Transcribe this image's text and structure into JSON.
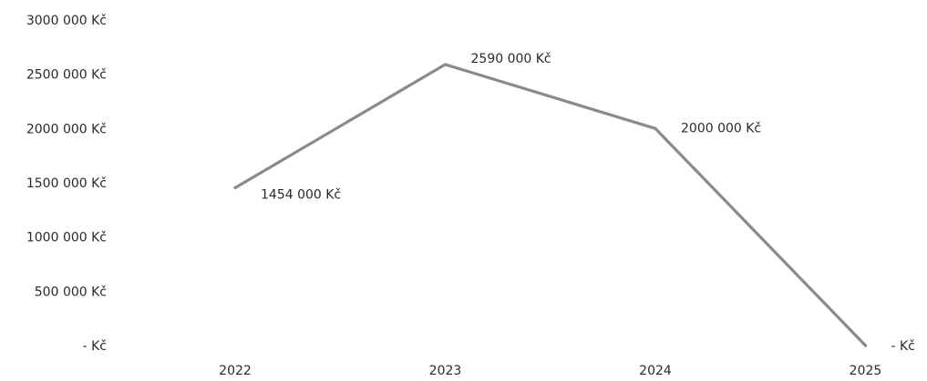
{
  "chart_data": {
    "type": "line",
    "categories": [
      "2022",
      "2023",
      "2024",
      "2025"
    ],
    "series": [
      {
        "values": [
          1454000,
          2590000,
          2000000,
          0
        ],
        "color": "#8a8a8a"
      }
    ],
    "data_labels": [
      "1454 000 Kč",
      "2590 000 Kč",
      "2000 000 Kč",
      "- Kč"
    ],
    "y_ticks": [
      {
        "value": 3000000,
        "label": "3000 000 Kč"
      },
      {
        "value": 2500000,
        "label": "2500 000 Kč"
      },
      {
        "value": 2000000,
        "label": "2000 000 Kč"
      },
      {
        "value": 1500000,
        "label": "1500 000 Kč"
      },
      {
        "value": 1000000,
        "label": "1000 000 Kč"
      },
      {
        "value": 500000,
        "label": "500 000 Kč"
      },
      {
        "value": 0,
        "label": "- Kč"
      }
    ],
    "ylim": [
      0,
      3000000
    ],
    "grid": false,
    "legend": "none",
    "title": "",
    "xlabel": "",
    "ylabel": ""
  }
}
